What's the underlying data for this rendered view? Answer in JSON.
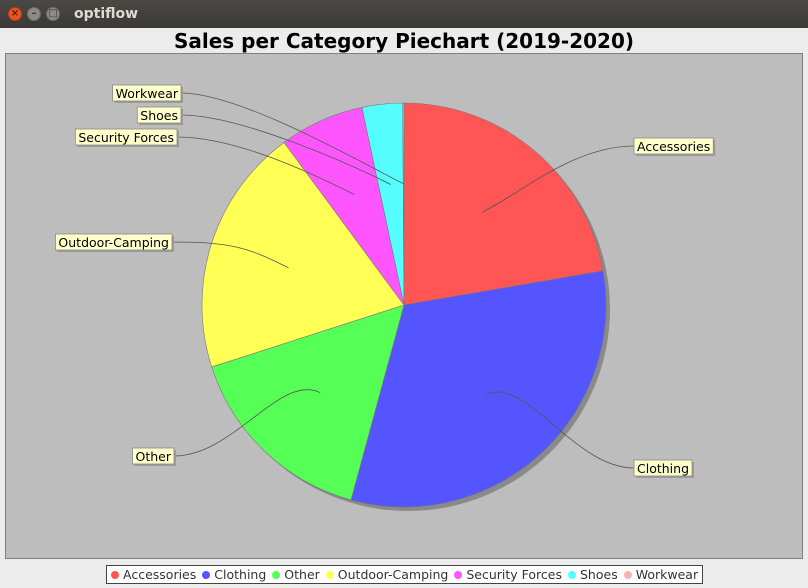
{
  "window": {
    "title": "optiflow",
    "buttons": {
      "close": "×",
      "minimize": "–",
      "maximize": "□"
    }
  },
  "colors": {
    "plot_background": "#bdbdbd",
    "label_box": "#ffffcc",
    "titlebar": "#3c3b37"
  },
  "chart_data": {
    "type": "pie",
    "title": "Sales per Category Piechart (2019-2020)",
    "categories": [
      "Accessories",
      "Clothing",
      "Other",
      "Outdoor-Camping",
      "Security Forces",
      "Shoes",
      "Workwear"
    ],
    "values": [
      22.7,
      32.5,
      16.1,
      20.2,
      6.9,
      3.3,
      0.1
    ],
    "unit": "%",
    "colors": [
      "#ff5555",
      "#5555ff",
      "#55ff55",
      "#ffff55",
      "#ff55ff",
      "#55ffff",
      "#ffafaf"
    ],
    "legend_position": "bottom",
    "labels_shown": true,
    "start_angle": "12 o'clock",
    "direction": "clockwise"
  }
}
